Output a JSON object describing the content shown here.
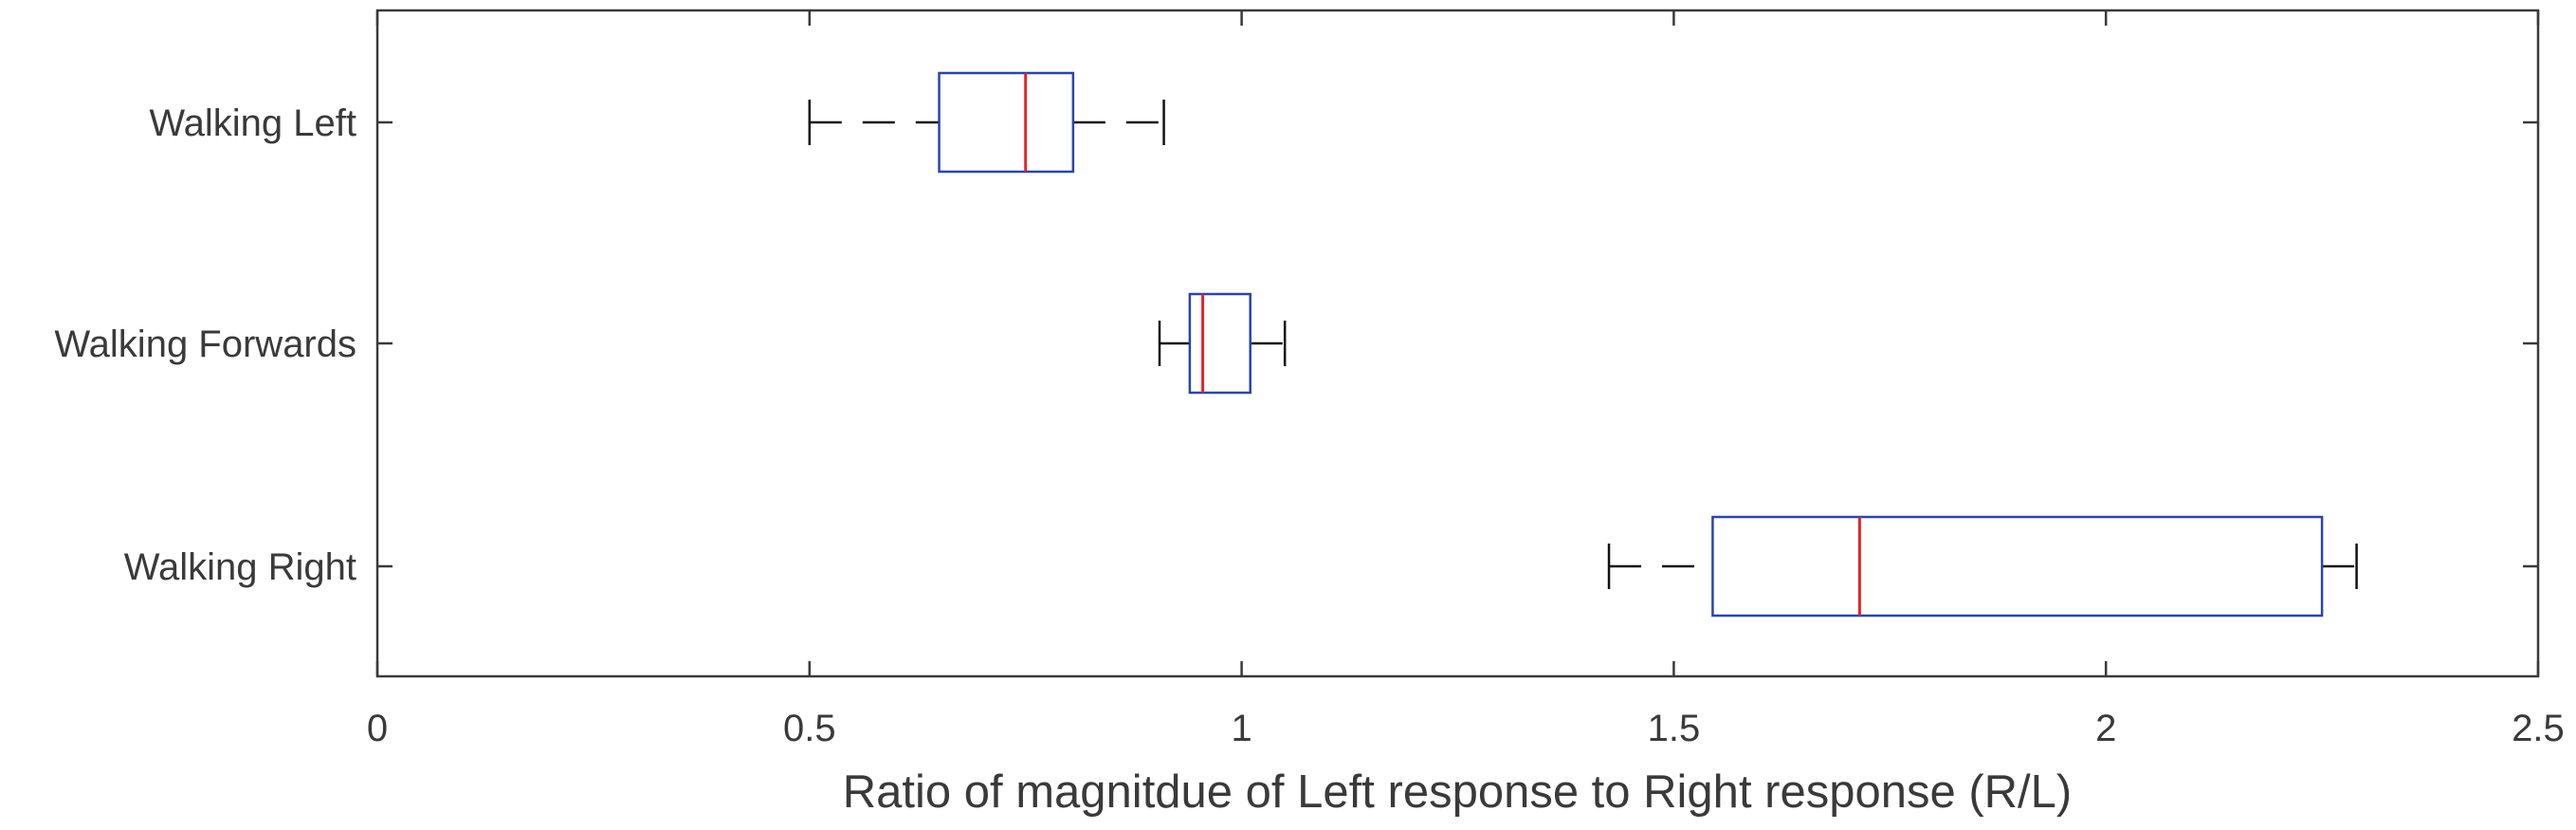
{
  "chart_data": {
    "type": "boxplot",
    "orientation": "horizontal",
    "title": "",
    "xlabel": "Ratio of magnitdue of Left response to Right response (R/L)",
    "ylabel": "",
    "xlim": [
      0,
      2.5
    ],
    "x_ticks": [
      0,
      0.5,
      1,
      1.5,
      2,
      2.5
    ],
    "x_tick_labels": [
      "0",
      "0.5",
      "1",
      "1.5",
      "2",
      "2.5"
    ],
    "grid": false,
    "categories": [
      "Walking Left",
      "Walking Forwards",
      "Walking Right"
    ],
    "boxes": [
      {
        "label": "Walking Left",
        "whisker_low": 0.5,
        "q1": 0.65,
        "median": 0.75,
        "q3": 0.805,
        "whisker_high": 0.91
      },
      {
        "label": "Walking Forwards",
        "whisker_low": 0.905,
        "q1": 0.94,
        "median": 0.955,
        "q3": 1.01,
        "whisker_high": 1.05
      },
      {
        "label": "Walking Right",
        "whisker_low": 1.425,
        "q1": 1.545,
        "median": 1.715,
        "q3": 2.25,
        "whisker_high": 2.29
      }
    ],
    "colors": {
      "box": "#2b45a8",
      "median": "#e0262a",
      "whisker": "#111111",
      "axis": "#3a3a3a"
    }
  }
}
